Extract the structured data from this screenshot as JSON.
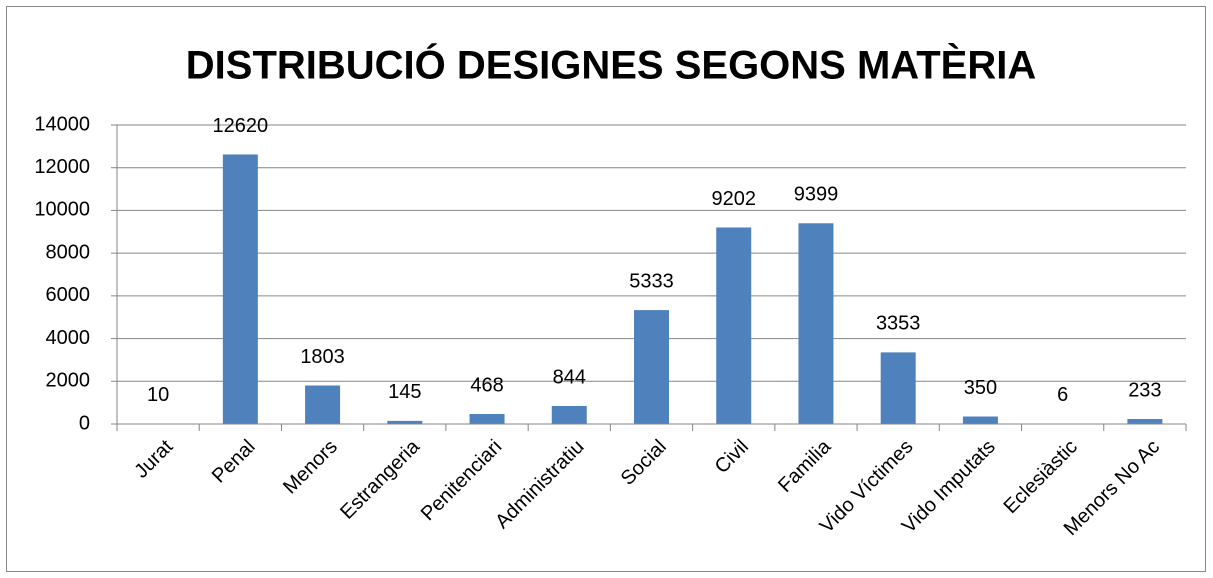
{
  "chart_data": {
    "type": "bar",
    "title": "DISTRIBUCIÓ DESIGNES SEGONS MATÈRIA",
    "categories": [
      "Jurat",
      "Penal",
      "Menors",
      "Estrangeria",
      "Penitenciari",
      "Administratiu",
      "Social",
      "Civil",
      "Familia",
      "Vido Víctimes",
      "Vido Imputats",
      "Eclesiàstic",
      "Menors No Ac"
    ],
    "values": [
      10,
      12620,
      1803,
      145,
      468,
      844,
      5333,
      9202,
      9399,
      3353,
      350,
      6,
      233
    ],
    "color": "#4f81bd",
    "ylim": [
      0,
      14000
    ],
    "yticks": [
      0,
      2000,
      4000,
      6000,
      8000,
      10000,
      12000,
      14000
    ],
    "grid": true
  }
}
